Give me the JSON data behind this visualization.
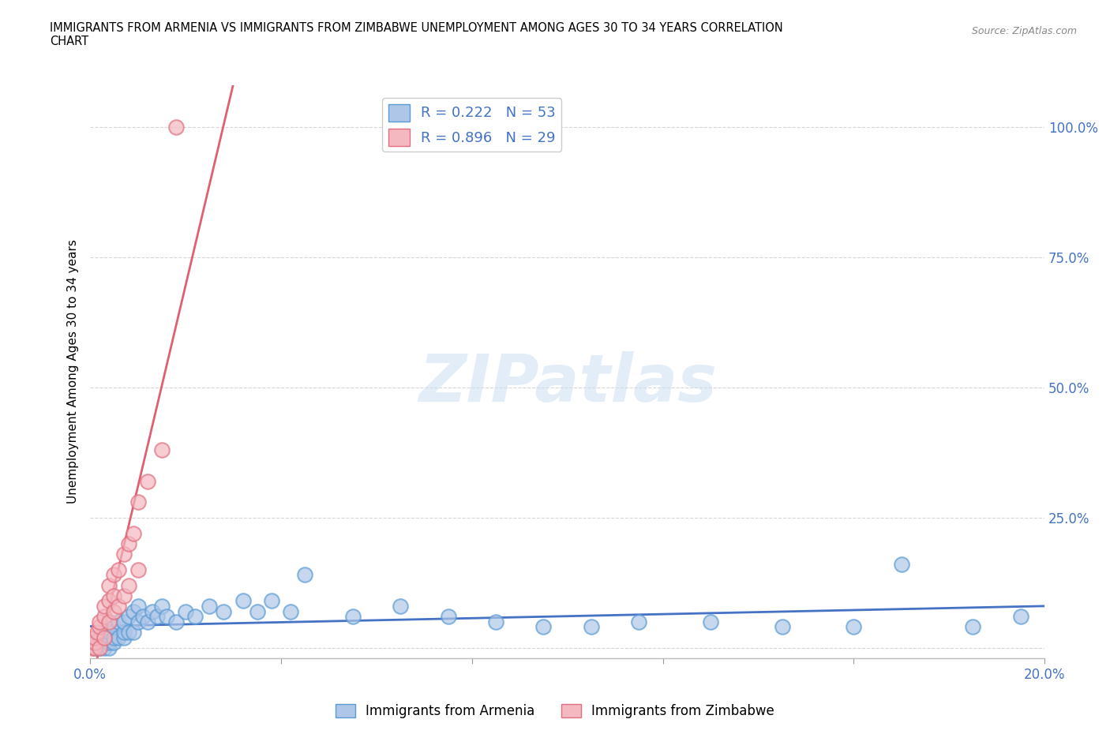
{
  "title": "IMMIGRANTS FROM ARMENIA VS IMMIGRANTS FROM ZIMBABWE UNEMPLOYMENT AMONG AGES 30 TO 34 YEARS CORRELATION\nCHART",
  "source": "Source: ZipAtlas.com",
  "ylabel": "Unemployment Among Ages 30 to 34 years",
  "armenia_color": "#aec6e8",
  "armenia_edge_color": "#5b9bd5",
  "zimbabwe_color": "#f4b8c1",
  "zimbabwe_edge_color": "#e07080",
  "armenia_line_color": "#4472c4",
  "zimbabwe_line_color": "#e06070",
  "armenia_R": 0.222,
  "armenia_N": 53,
  "zimbabwe_R": 0.896,
  "zimbabwe_N": 29,
  "watermark_text": "ZIPatlas",
  "watermark_color": "#c8ddf0",
  "yticks": [
    0.0,
    0.25,
    0.5,
    0.75,
    1.0
  ],
  "ytick_labels": [
    "",
    "25.0%",
    "50.0%",
    "75.0%",
    "100.0%"
  ],
  "xtick_labels": [
    "0.0%",
    "",
    "",
    "",
    "",
    "20.0%"
  ],
  "xlim": [
    0.0,
    0.2
  ],
  "ylim": [
    -0.02,
    1.08
  ],
  "tick_color": "#4472c4",
  "legend_label_color": "#4472c4",
  "grid_color": "#cccccc",
  "background_color": "#ffffff",
  "armenia_x": [
    0.001,
    0.001,
    0.002,
    0.002,
    0.003,
    0.003,
    0.003,
    0.004,
    0.004,
    0.004,
    0.005,
    0.005,
    0.005,
    0.006,
    0.006,
    0.007,
    0.007,
    0.007,
    0.008,
    0.008,
    0.009,
    0.009,
    0.01,
    0.01,
    0.011,
    0.012,
    0.013,
    0.014,
    0.015,
    0.016,
    0.018,
    0.02,
    0.022,
    0.025,
    0.028,
    0.032,
    0.035,
    0.038,
    0.042,
    0.045,
    0.055,
    0.065,
    0.075,
    0.085,
    0.095,
    0.105,
    0.115,
    0.13,
    0.145,
    0.16,
    0.17,
    0.185,
    0.195
  ],
  "armenia_y": [
    0.0,
    0.01,
    0.0,
    0.02,
    0.0,
    0.01,
    0.02,
    0.0,
    0.01,
    0.03,
    0.01,
    0.02,
    0.04,
    0.02,
    0.05,
    0.02,
    0.03,
    0.05,
    0.03,
    0.06,
    0.03,
    0.07,
    0.05,
    0.08,
    0.06,
    0.05,
    0.07,
    0.06,
    0.08,
    0.06,
    0.05,
    0.07,
    0.06,
    0.08,
    0.07,
    0.09,
    0.07,
    0.09,
    0.07,
    0.14,
    0.06,
    0.08,
    0.06,
    0.05,
    0.04,
    0.04,
    0.05,
    0.05,
    0.04,
    0.04,
    0.16,
    0.04,
    0.06
  ],
  "zimbabwe_x": [
    0.0005,
    0.001,
    0.001,
    0.001,
    0.0015,
    0.002,
    0.002,
    0.002,
    0.003,
    0.003,
    0.003,
    0.004,
    0.004,
    0.004,
    0.005,
    0.005,
    0.005,
    0.006,
    0.006,
    0.007,
    0.007,
    0.008,
    0.008,
    0.009,
    0.01,
    0.01,
    0.012,
    0.015,
    0.018
  ],
  "zimbabwe_y": [
    0.0,
    0.0,
    0.01,
    0.02,
    0.03,
    0.0,
    0.04,
    0.05,
    0.02,
    0.06,
    0.08,
    0.05,
    0.09,
    0.12,
    0.07,
    0.1,
    0.14,
    0.08,
    0.15,
    0.1,
    0.18,
    0.12,
    0.2,
    0.22,
    0.15,
    0.28,
    0.32,
    0.38,
    1.0
  ]
}
